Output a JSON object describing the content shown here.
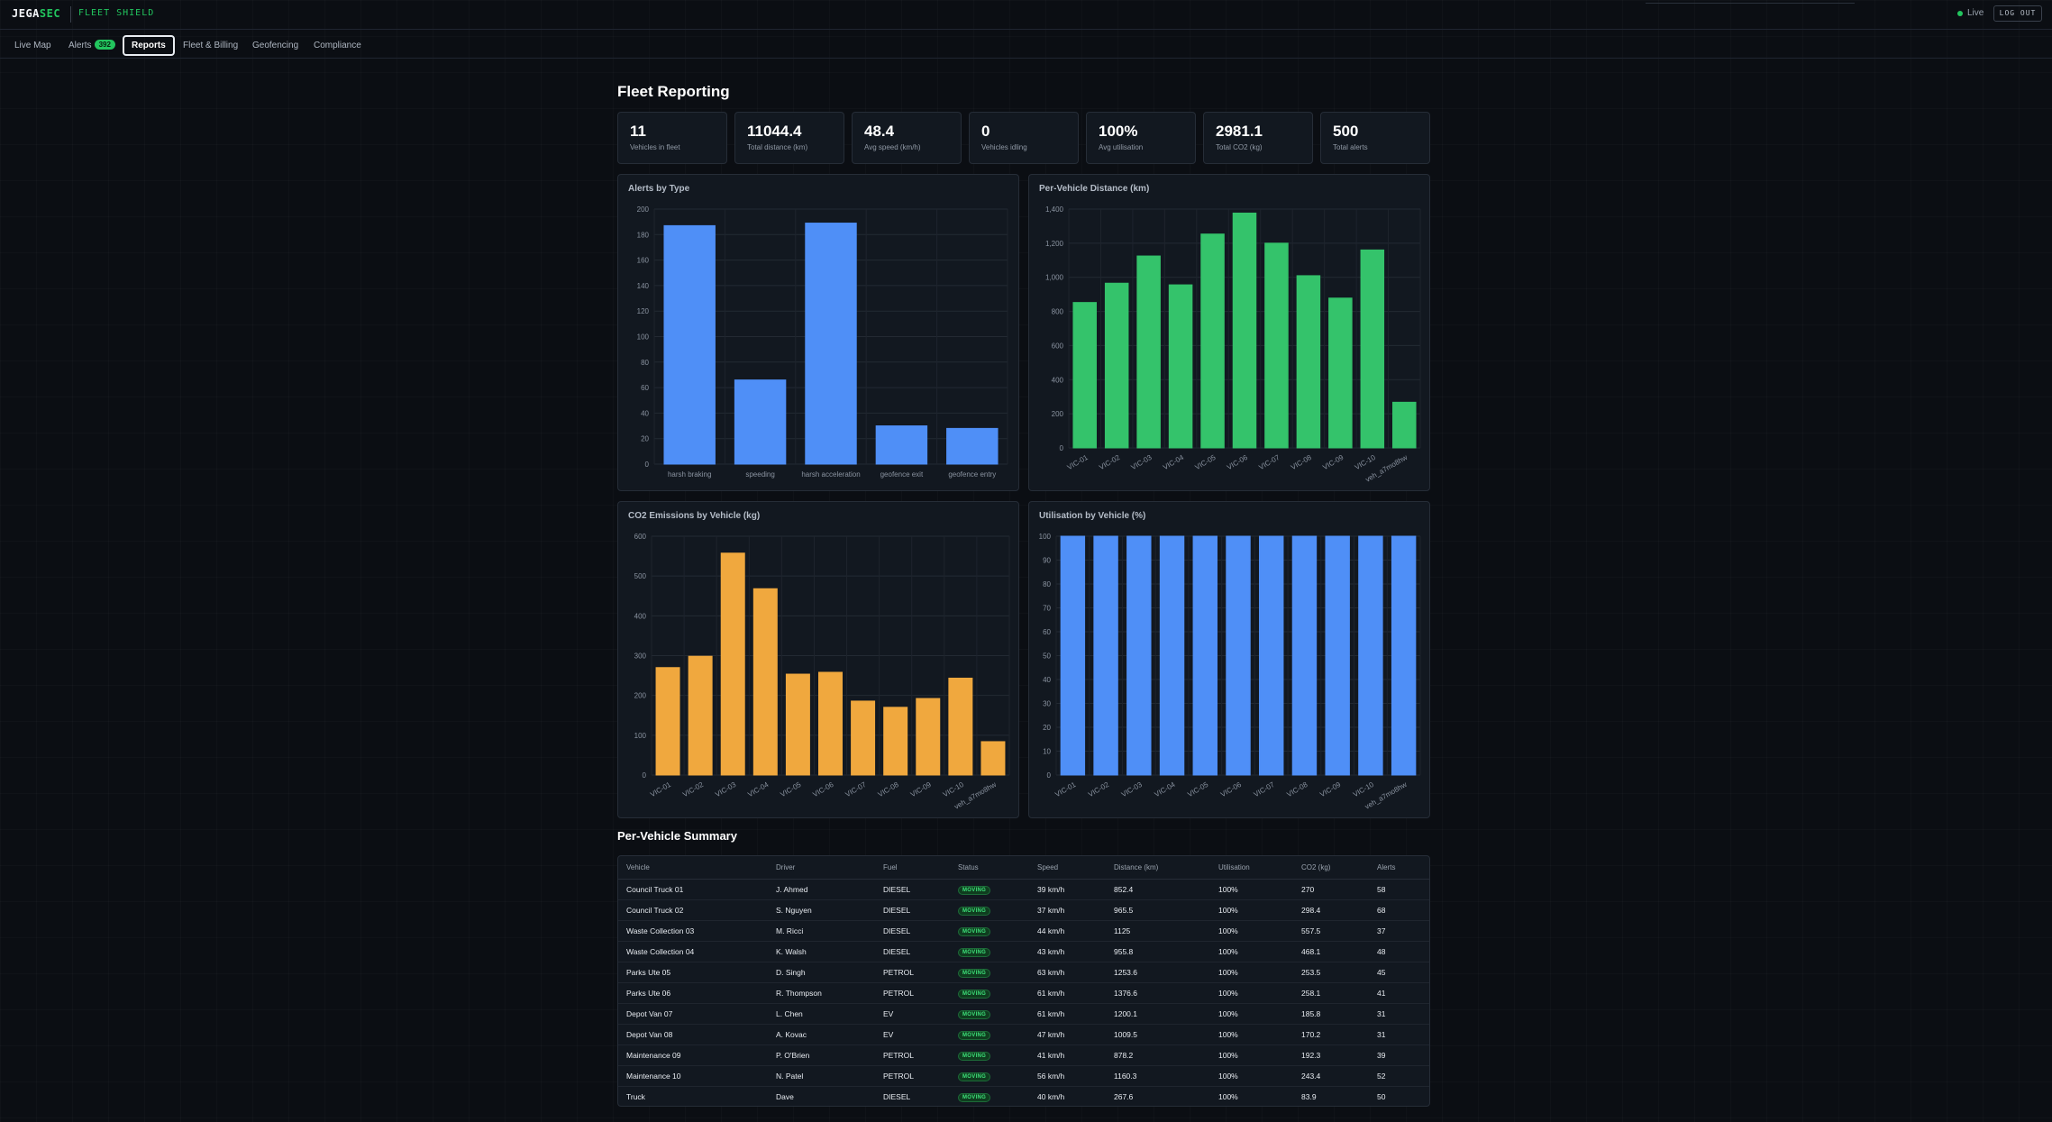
{
  "brand": {
    "name_part1": "JEGA",
    "name_part2": "SEC",
    "product": "FLEET SHIELD"
  },
  "header": {
    "live_label": "Live",
    "logout_label": "LOG OUT"
  },
  "nav": {
    "tabs": [
      {
        "label": "Live Map"
      },
      {
        "label": "Alerts",
        "badge": "392"
      },
      {
        "label": "Reports",
        "active": true
      },
      {
        "label": "Fleet & Billing"
      },
      {
        "label": "Geofencing"
      },
      {
        "label": "Compliance"
      }
    ]
  },
  "page": {
    "title": "Fleet Reporting"
  },
  "stats": [
    {
      "value": "11",
      "label": "Vehicles in fleet"
    },
    {
      "value": "11044.4",
      "label": "Total distance (km)"
    },
    {
      "value": "48.4",
      "label": "Avg speed (km/h)"
    },
    {
      "value": "0",
      "label": "Vehicles idling"
    },
    {
      "value": "100%",
      "label": "Avg utilisation"
    },
    {
      "value": "2981.1",
      "label": "Total CO2 (kg)"
    },
    {
      "value": "500",
      "label": "Total alerts"
    }
  ],
  "colors": {
    "blue": "#4f8ff7",
    "green": "#34c36b",
    "orange": "#f0a83e",
    "accent": "#22c55e"
  },
  "chart_data": [
    {
      "type": "bar",
      "title": "Alerts by Type",
      "categories": [
        "harsh braking",
        "speeding",
        "harsh acceleration",
        "geofence exit",
        "geofence entry"
      ],
      "values": [
        187,
        66,
        189,
        30,
        28
      ],
      "ylim": [
        0,
        200
      ],
      "yticks": [
        "0",
        "20",
        "40",
        "60",
        "80",
        "100",
        "120",
        "140",
        "160",
        "180",
        "200"
      ],
      "color": "#4f8ff7",
      "rotate_labels": false,
      "grid": true
    },
    {
      "type": "bar",
      "title": "Per-Vehicle Distance (km)",
      "categories": [
        "VIC-01",
        "VIC-02",
        "VIC-03",
        "VIC-04",
        "VIC-05",
        "VIC-06",
        "VIC-07",
        "VIC-08",
        "VIC-09",
        "VIC-10",
        "veh_a7mo8hw"
      ],
      "values": [
        852.4,
        965.5,
        1125,
        955.8,
        1253.6,
        1376.6,
        1200.1,
        1009.5,
        878.2,
        1160.3,
        267.6
      ],
      "ylim": [
        0,
        1400
      ],
      "yticks": [
        "0",
        "200",
        "400",
        "600",
        "800",
        "1,000",
        "1,200",
        "1,400"
      ],
      "color": "#34c36b",
      "rotate_labels": true,
      "grid": true
    },
    {
      "type": "bar",
      "title": "CO2 Emissions by Vehicle (kg)",
      "categories": [
        "VIC-01",
        "VIC-02",
        "VIC-03",
        "VIC-04",
        "VIC-05",
        "VIC-06",
        "VIC-07",
        "VIC-08",
        "VIC-09",
        "VIC-10",
        "veh_a7mo8hw"
      ],
      "values": [
        270,
        298.4,
        557.5,
        468.1,
        253.5,
        258.1,
        185.8,
        170.2,
        192.3,
        243.4,
        83.9
      ],
      "ylim": [
        0,
        600
      ],
      "yticks": [
        "0",
        "100",
        "200",
        "300",
        "400",
        "500",
        "600"
      ],
      "color": "#f0a83e",
      "rotate_labels": true,
      "grid": true
    },
    {
      "type": "bar",
      "title": "Utilisation by Vehicle (%)",
      "categories": [
        "VIC-01",
        "VIC-02",
        "VIC-03",
        "VIC-04",
        "VIC-05",
        "VIC-06",
        "VIC-07",
        "VIC-08",
        "VIC-09",
        "VIC-10",
        "veh_a7mo8hw"
      ],
      "values": [
        100,
        100,
        100,
        100,
        100,
        100,
        100,
        100,
        100,
        100,
        100
      ],
      "ylim": [
        0,
        100
      ],
      "yticks": [
        "0",
        "10",
        "20",
        "30",
        "40",
        "50",
        "60",
        "70",
        "80",
        "90",
        "100"
      ],
      "color": "#4f8ff7",
      "rotate_labels": true,
      "grid": true
    }
  ],
  "summary": {
    "title": "Per-Vehicle Summary",
    "columns": [
      "Vehicle",
      "Driver",
      "Fuel",
      "Status",
      "Speed",
      "Distance (km)",
      "Utilisation",
      "CO2 (kg)",
      "Alerts"
    ],
    "rows": [
      [
        "Council Truck 01",
        "J. Ahmed",
        "DIESEL",
        "MOVING",
        "39 km/h",
        "852.4",
        "100%",
        "270",
        "58"
      ],
      [
        "Council Truck 02",
        "S. Nguyen",
        "DIESEL",
        "MOVING",
        "37 km/h",
        "965.5",
        "100%",
        "298.4",
        "68"
      ],
      [
        "Waste Collection 03",
        "M. Ricci",
        "DIESEL",
        "MOVING",
        "44 km/h",
        "1125",
        "100%",
        "557.5",
        "37"
      ],
      [
        "Waste Collection 04",
        "K. Walsh",
        "DIESEL",
        "MOVING",
        "43 km/h",
        "955.8",
        "100%",
        "468.1",
        "48"
      ],
      [
        "Parks Ute 05",
        "D. Singh",
        "PETROL",
        "MOVING",
        "63 km/h",
        "1253.6",
        "100%",
        "253.5",
        "45"
      ],
      [
        "Parks Ute 06",
        "R. Thompson",
        "PETROL",
        "MOVING",
        "61 km/h",
        "1376.6",
        "100%",
        "258.1",
        "41"
      ],
      [
        "Depot Van 07",
        "L. Chen",
        "EV",
        "MOVING",
        "61 km/h",
        "1200.1",
        "100%",
        "185.8",
        "31"
      ],
      [
        "Depot Van 08",
        "A. Kovac",
        "EV",
        "MOVING",
        "47 km/h",
        "1009.5",
        "100%",
        "170.2",
        "31"
      ],
      [
        "Maintenance 09",
        "P. O'Brien",
        "PETROL",
        "MOVING",
        "41 km/h",
        "878.2",
        "100%",
        "192.3",
        "39"
      ],
      [
        "Maintenance 10",
        "N. Patel",
        "PETROL",
        "MOVING",
        "56 km/h",
        "1160.3",
        "100%",
        "243.4",
        "52"
      ],
      [
        "Truck",
        "Dave",
        "DIESEL",
        "MOVING",
        "40 km/h",
        "267.6",
        "100%",
        "83.9",
        "50"
      ]
    ]
  }
}
